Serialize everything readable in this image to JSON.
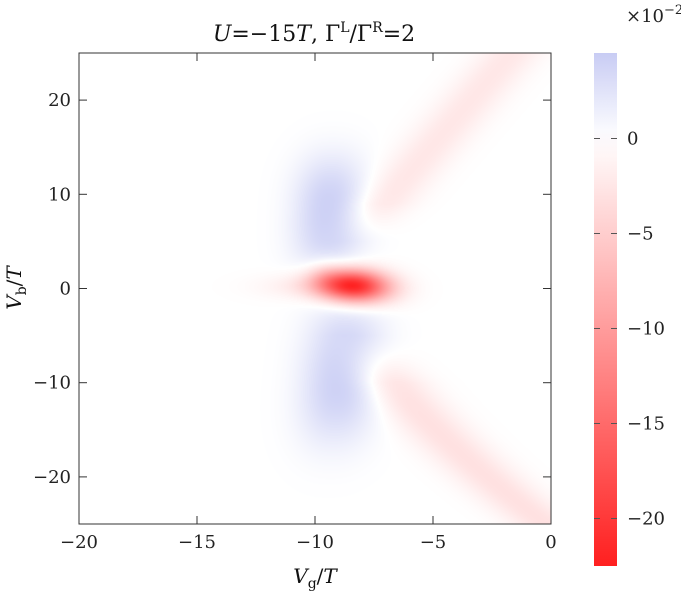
{
  "chart_data": {
    "type": "heatmap",
    "title": {
      "U": "U",
      "eq1": "=−15",
      "T": "T",
      "sep": ",  ",
      "gammaL": "Γ",
      "supL": "L",
      "slash": "/Γ",
      "supR": "R",
      "eq2": "=2"
    },
    "xlabel": {
      "main": "V",
      "sub": "g",
      "rest": "/",
      "unit": "T"
    },
    "ylabel": {
      "main": "V",
      "sub": "b",
      "rest": "/",
      "unit": "T"
    },
    "xlim": [
      -20,
      0
    ],
    "ylim": [
      -25,
      25
    ],
    "x_ticks": [
      {
        "value": -20,
        "label": "−20"
      },
      {
        "value": -15,
        "label": "−15"
      },
      {
        "value": -10,
        "label": "−10"
      },
      {
        "value": -5,
        "label": "−5"
      },
      {
        "value": 0,
        "label": "0"
      }
    ],
    "y_ticks": [
      {
        "value": 20,
        "label": "20"
      },
      {
        "value": 10,
        "label": "10"
      },
      {
        "value": 0,
        "label": "0"
      },
      {
        "value": -10,
        "label": "−10"
      },
      {
        "value": -20,
        "label": "−20"
      }
    ],
    "colorbar": {
      "range": [
        -22.5,
        4.5
      ],
      "multiplier_label": {
        "base": "×10",
        "exp": "−2"
      },
      "ticks": [
        {
          "value": 0,
          "label": "0"
        },
        {
          "value": -5,
          "label": "−5"
        },
        {
          "value": -10,
          "label": "−10"
        },
        {
          "value": -15,
          "label": "−15"
        },
        {
          "value": -20,
          "label": "−20"
        }
      ],
      "colors": {
        "max": "#c8ccf4",
        "zero": "#ffffff",
        "min": "#ff2020"
      }
    },
    "features": [
      {
        "kind": "negative-peak",
        "x": -8.4,
        "y": 0.2,
        "value": -22
      },
      {
        "kind": "positive-lobe",
        "x": -9.2,
        "y": 8,
        "value": 4
      },
      {
        "kind": "positive-lobe",
        "x": -8.9,
        "y": -9,
        "value": 4
      },
      {
        "kind": "negative-branch",
        "from": [
          -8,
          6
        ],
        "to": [
          0,
          28
        ],
        "value": -2.5
      },
      {
        "kind": "negative-branch",
        "from": [
          -8,
          -6
        ],
        "to": [
          0,
          -26
        ],
        "value": -3
      }
    ]
  }
}
